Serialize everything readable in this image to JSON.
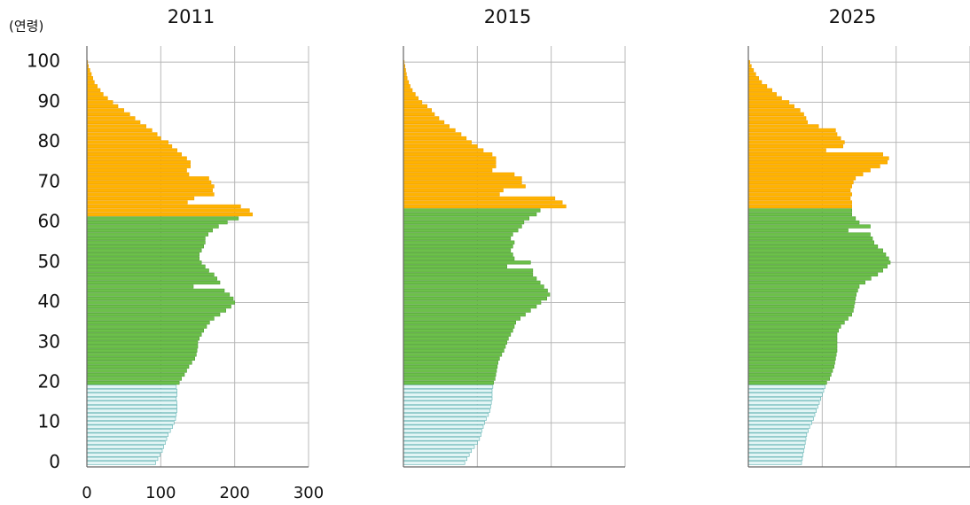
{
  "chart_data": [
    {
      "type": "barh",
      "title": "2011",
      "ylabel": "(연령)",
      "show_tick_labels": true,
      "xlim": [
        0,
        300
      ],
      "xticks": [
        0,
        100,
        200,
        300
      ],
      "ylim": [
        -1,
        104
      ],
      "yticks": [
        0,
        10,
        20,
        30,
        40,
        50,
        60,
        70,
        80,
        90,
        100
      ],
      "grid": true,
      "series": [
        {
          "color": "#e3f5f5",
          "edgecolor": "#5eb1b1",
          "y": [
            0,
            1,
            2,
            3,
            4,
            5,
            6,
            7,
            8,
            9,
            10,
            11,
            12,
            13,
            14,
            15,
            16,
            17,
            18,
            19
          ],
          "values": [
            93,
            96,
            99,
            102,
            104,
            106,
            108,
            110,
            113,
            116,
            118,
            120,
            121,
            122,
            122,
            122,
            121,
            122,
            122,
            121
          ]
        },
        {
          "color": "#6cc04a",
          "edgecolor": "#4e9e33",
          "y": [
            20,
            21,
            22,
            23,
            24,
            25,
            26,
            27,
            28,
            29,
            30,
            31,
            32,
            33,
            34,
            35,
            36,
            37,
            38,
            39,
            40,
            41,
            42,
            43,
            44,
            45,
            46,
            47,
            48,
            49,
            50,
            51,
            52,
            53,
            54,
            55,
            56,
            57,
            58,
            59,
            60,
            61
          ],
          "values": [
            125,
            128,
            132,
            135,
            138,
            142,
            146,
            148,
            149,
            150,
            150,
            152,
            155,
            158,
            162,
            166,
            172,
            180,
            188,
            195,
            200,
            198,
            193,
            186,
            144,
            180,
            176,
            172,
            165,
            160,
            155,
            152,
            152,
            155,
            158,
            160,
            160,
            164,
            170,
            178,
            190,
            205
          ]
        },
        {
          "color": "#ffb300",
          "edgecolor": "#f0a000",
          "y": [
            62,
            63,
            64,
            65,
            66,
            67,
            68,
            69,
            70,
            71,
            72,
            73,
            74,
            75,
            76,
            77,
            78,
            79,
            80,
            81,
            82,
            83,
            84,
            85,
            86,
            87,
            88,
            89,
            90,
            91,
            92,
            93,
            94,
            95,
            96,
            97,
            98,
            99,
            100
          ],
          "values": [
            224,
            220,
            208,
            136,
            145,
            172,
            170,
            172,
            168,
            165,
            138,
            135,
            140,
            140,
            135,
            128,
            122,
            115,
            110,
            100,
            95,
            88,
            80,
            72,
            65,
            58,
            50,
            42,
            35,
            28,
            22,
            18,
            14,
            10,
            8,
            6,
            4,
            2,
            1
          ]
        }
      ]
    },
    {
      "type": "barh",
      "title": "2015",
      "show_tick_labels": false,
      "xlim": [
        0,
        300
      ],
      "xticks": [
        0,
        100,
        200,
        300
      ],
      "ylim": [
        -1,
        104
      ],
      "yticks": [
        0,
        10,
        20,
        30,
        40,
        50,
        60,
        70,
        80,
        90,
        100
      ],
      "grid": true,
      "series": [
        {
          "color": "#e3f5f5",
          "edgecolor": "#5eb1b1",
          "y": [
            0,
            1,
            2,
            3,
            4,
            5,
            6,
            7,
            8,
            9,
            10,
            11,
            12,
            13,
            14,
            15,
            16,
            17,
            18,
            19
          ],
          "values": [
            83,
            86,
            89,
            92,
            96,
            100,
            103,
            105,
            106,
            108,
            110,
            112,
            115,
            117,
            118,
            119,
            120,
            120,
            120,
            121
          ]
        },
        {
          "color": "#6cc04a",
          "edgecolor": "#4e9e33",
          "y": [
            20,
            21,
            22,
            23,
            24,
            25,
            26,
            27,
            28,
            29,
            30,
            31,
            32,
            33,
            34,
            35,
            36,
            37,
            38,
            39,
            40,
            41,
            42,
            43,
            44,
            45,
            46,
            47,
            48,
            49,
            50,
            51,
            52,
            53,
            54,
            55,
            56,
            57,
            58,
            59,
            60,
            61,
            62,
            63
          ],
          "values": [
            122,
            124,
            125,
            126,
            127,
            128,
            130,
            133,
            136,
            138,
            140,
            142,
            145,
            148,
            150,
            152,
            158,
            165,
            172,
            180,
            186,
            194,
            198,
            195,
            190,
            185,
            180,
            175,
            175,
            140,
            172,
            150,
            148,
            145,
            148,
            150,
            145,
            148,
            155,
            160,
            163,
            170,
            180,
            185
          ]
        },
        {
          "color": "#ffb300",
          "edgecolor": "#f0a000",
          "y": [
            64,
            65,
            66,
            67,
            68,
            69,
            70,
            71,
            72,
            73,
            74,
            75,
            76,
            77,
            78,
            79,
            80,
            81,
            82,
            83,
            84,
            85,
            86,
            87,
            88,
            89,
            90,
            91,
            92,
            93,
            94,
            95,
            96,
            97,
            98,
            99,
            100
          ],
          "values": [
            220,
            215,
            205,
            130,
            135,
            165,
            160,
            160,
            150,
            120,
            125,
            125,
            125,
            120,
            108,
            100,
            92,
            85,
            78,
            70,
            62,
            55,
            48,
            42,
            38,
            32,
            25,
            20,
            16,
            12,
            9,
            7,
            5,
            4,
            3,
            2,
            1
          ]
        }
      ]
    },
    {
      "type": "barh",
      "title": "2025",
      "show_tick_labels": false,
      "xlim": [
        0,
        300
      ],
      "xticks": [
        0,
        100,
        200,
        300
      ],
      "ylim": [
        -1,
        104
      ],
      "yticks": [
        0,
        10,
        20,
        30,
        40,
        50,
        60,
        70,
        80,
        90,
        100
      ],
      "grid": true,
      "series": [
        {
          "color": "#e3f5f5",
          "edgecolor": "#5eb1b1",
          "y": [
            0,
            1,
            2,
            3,
            4,
            5,
            6,
            7,
            8,
            9,
            10,
            11,
            12,
            13,
            14,
            15,
            16,
            17,
            18,
            19
          ],
          "values": [
            72,
            73,
            74,
            75,
            76,
            77,
            78,
            79,
            81,
            83,
            86,
            88,
            90,
            92,
            94,
            96,
            98,
            100,
            102,
            104
          ]
        },
        {
          "color": "#6cc04a",
          "edgecolor": "#4e9e33",
          "y": [
            20,
            21,
            22,
            23,
            24,
            25,
            26,
            27,
            28,
            29,
            30,
            31,
            32,
            33,
            34,
            35,
            36,
            37,
            38,
            39,
            40,
            41,
            42,
            43,
            44,
            45,
            46,
            47,
            48,
            49,
            50,
            51,
            52,
            53,
            54,
            55,
            56,
            57,
            58,
            59,
            60,
            61,
            62,
            63
          ],
          "values": [
            106,
            110,
            112,
            114,
            116,
            117,
            118,
            119,
            120,
            120,
            120,
            120,
            120,
            122,
            125,
            130,
            135,
            140,
            142,
            143,
            144,
            145,
            146,
            148,
            150,
            158,
            166,
            175,
            182,
            188,
            192,
            190,
            186,
            182,
            175,
            170,
            168,
            165,
            135,
            165,
            150,
            145,
            140,
            140
          ]
        },
        {
          "color": "#ffb300",
          "edgecolor": "#f0a000",
          "y": [
            64,
            65,
            66,
            67,
            68,
            69,
            70,
            71,
            72,
            73,
            74,
            75,
            76,
            77,
            78,
            79,
            80,
            81,
            82,
            83,
            84,
            85,
            86,
            87,
            88,
            89,
            90,
            91,
            92,
            93,
            94,
            95,
            96,
            97,
            98,
            99,
            100
          ],
          "values": [
            140,
            140,
            138,
            140,
            138,
            140,
            142,
            145,
            155,
            165,
            178,
            188,
            190,
            182,
            105,
            128,
            130,
            125,
            120,
            118,
            95,
            80,
            78,
            75,
            70,
            62,
            55,
            45,
            38,
            32,
            25,
            18,
            14,
            10,
            7,
            4,
            2
          ]
        }
      ]
    }
  ]
}
